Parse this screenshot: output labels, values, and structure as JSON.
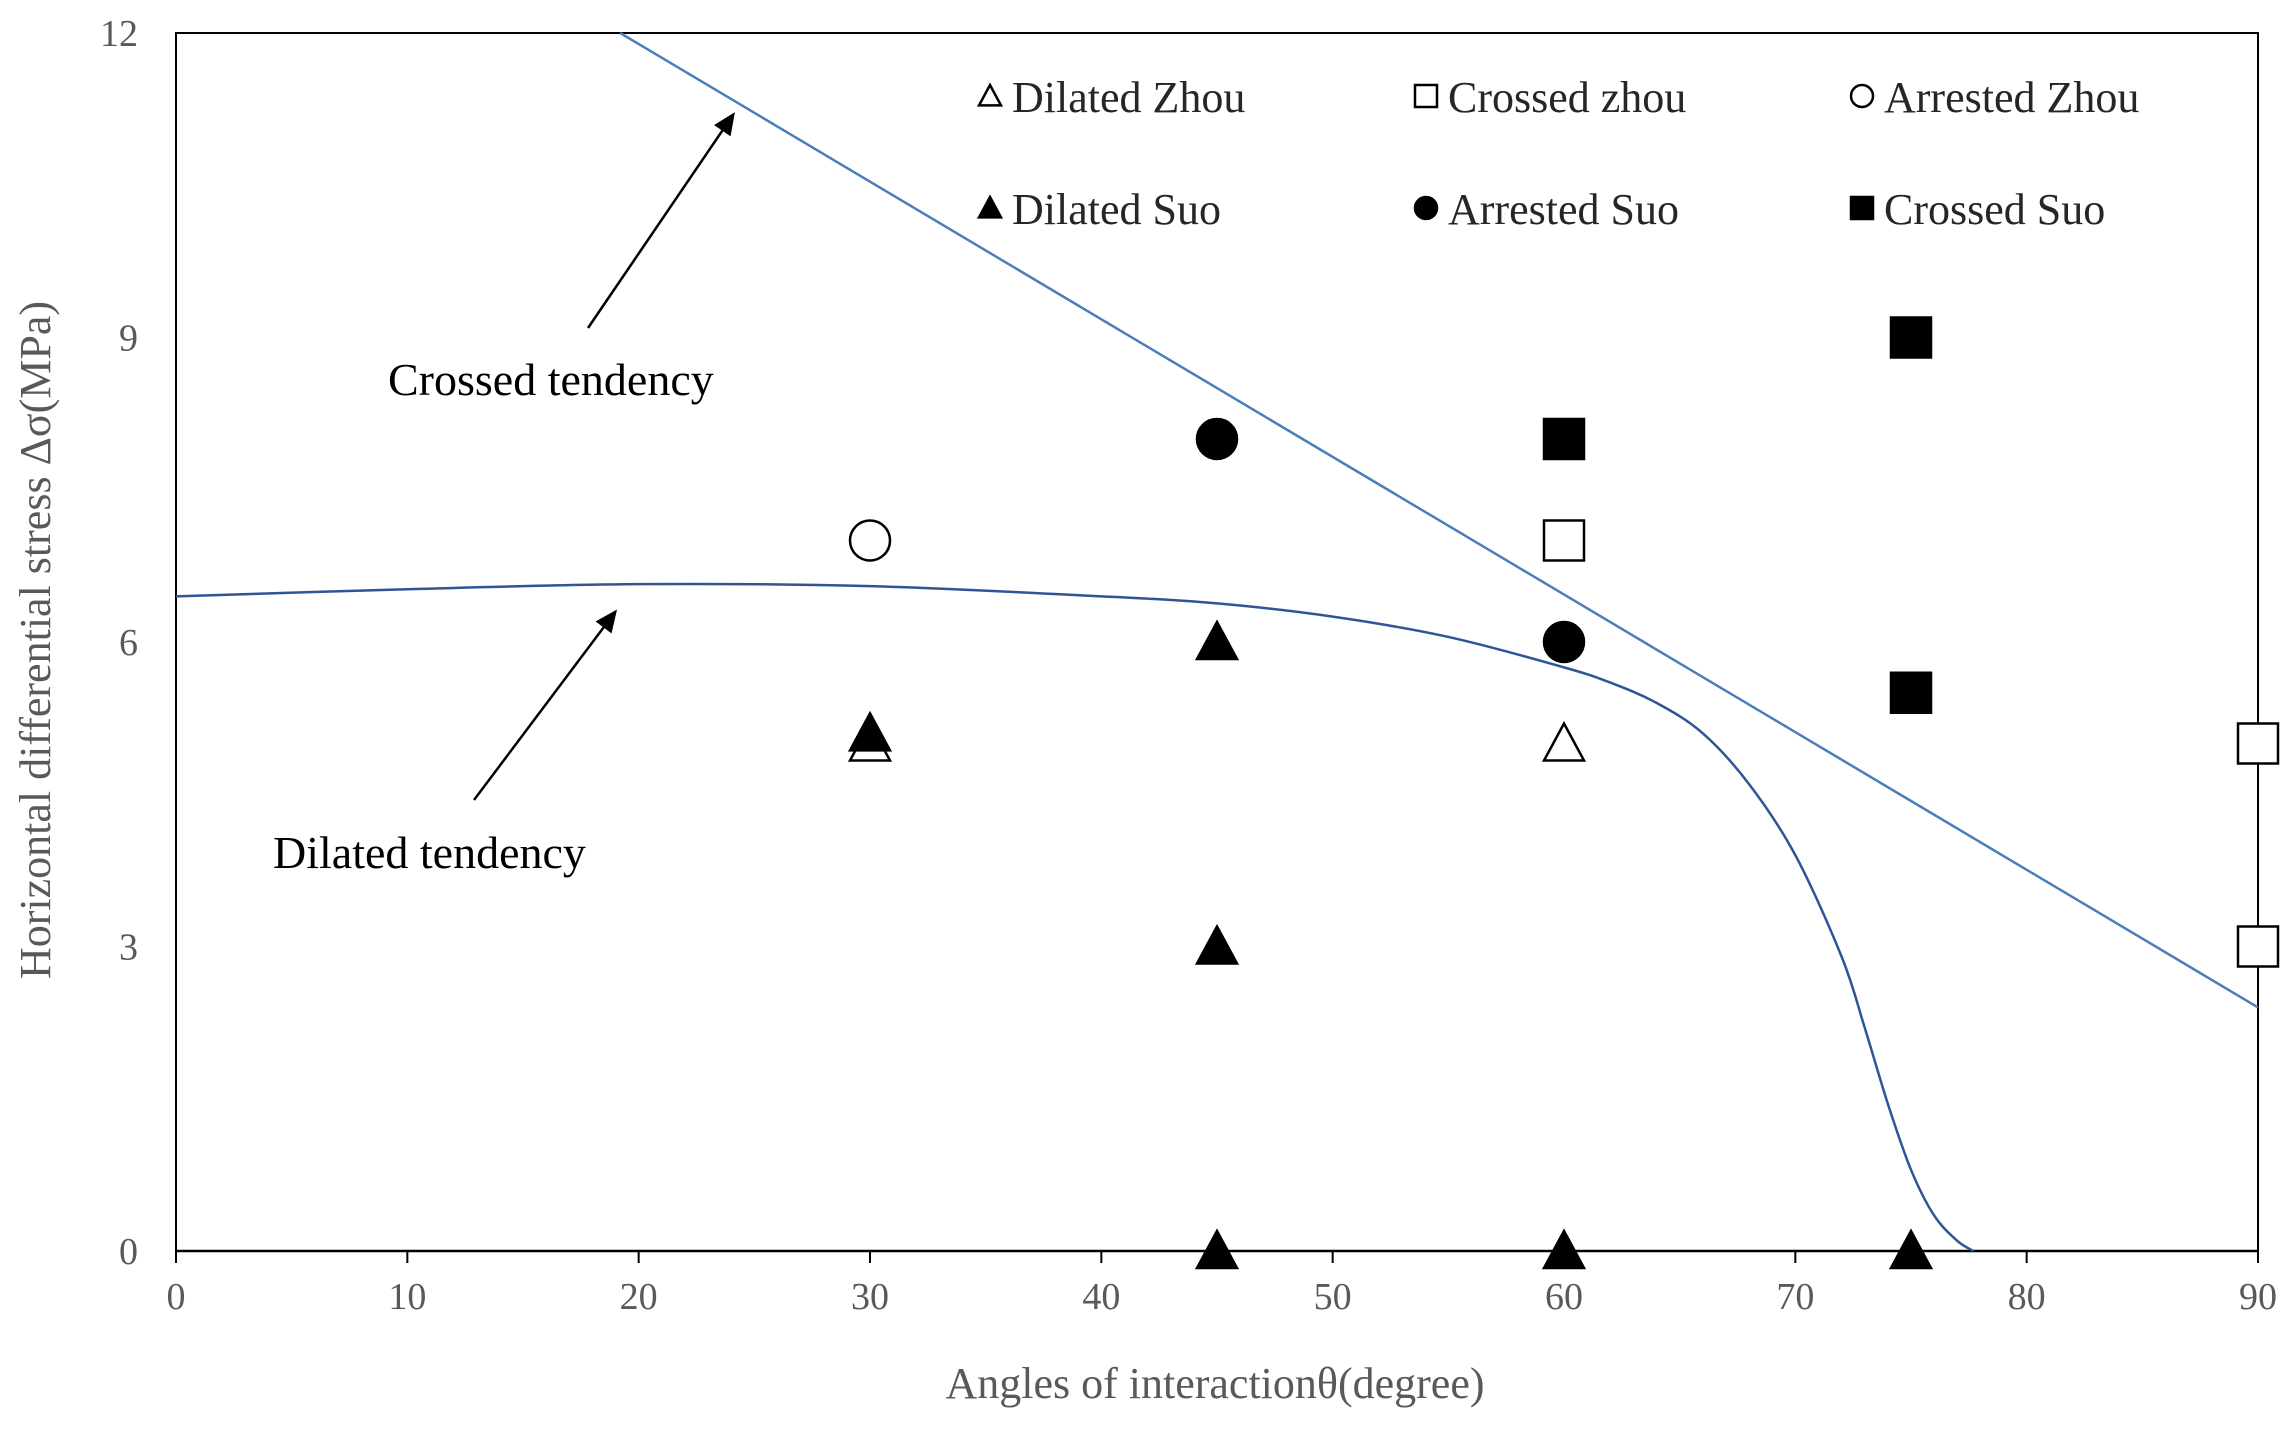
{
  "chart_data": {
    "type": "scatter",
    "title": "",
    "xlabel": "Angles of interactionθ(degree)",
    "ylabel": "Horizontal differential stress Δσ(MPa)",
    "xlim": [
      0,
      90
    ],
    "ylim": [
      0,
      12
    ],
    "xticks": [
      0,
      10,
      20,
      30,
      40,
      50,
      60,
      70,
      80,
      90
    ],
    "yticks": [
      0,
      3,
      6,
      9,
      12
    ],
    "grid": false,
    "legend_position": "top",
    "series": [
      {
        "name": "Dilated Zhou",
        "marker": "triangle",
        "filled": false,
        "points": [
          [
            30,
            5
          ],
          [
            60,
            5
          ]
        ]
      },
      {
        "name": "Crossed zhou",
        "marker": "square",
        "filled": false,
        "points": [
          [
            60,
            7
          ],
          [
            90,
            5
          ],
          [
            90,
            3
          ]
        ]
      },
      {
        "name": "Arrested Zhou",
        "marker": "circle",
        "filled": false,
        "points": [
          [
            30,
            7
          ]
        ]
      },
      {
        "name": "Dilated Suo",
        "marker": "triangle",
        "filled": true,
        "points": [
          [
            30,
            5.1
          ],
          [
            45,
            6
          ],
          [
            45,
            3
          ],
          [
            45,
            0
          ],
          [
            60,
            0
          ],
          [
            75,
            0
          ]
        ]
      },
      {
        "name": "Arrested Suo",
        "marker": "circle",
        "filled": true,
        "points": [
          [
            45,
            8
          ],
          [
            60,
            6
          ]
        ]
      },
      {
        "name": "Crossed Suo",
        "marker": "square",
        "filled": true,
        "points": [
          [
            75,
            9
          ],
          [
            60,
            8
          ],
          [
            75,
            5.5
          ]
        ]
      }
    ],
    "lines": [
      {
        "name": "Crossed tendency",
        "color": "#4a7ebb",
        "points": [
          [
            19.2,
            12
          ],
          [
            90,
            2.4
          ]
        ]
      },
      {
        "name": "Dilated tendency",
        "color": "#2f5597",
        "points": [
          [
            0,
            6.45
          ],
          [
            10,
            6.52
          ],
          [
            20,
            6.57
          ],
          [
            30,
            6.55
          ],
          [
            40,
            6.45
          ],
          [
            45,
            6.38
          ],
          [
            50,
            6.25
          ],
          [
            55,
            6.05
          ],
          [
            60,
            5.75
          ],
          [
            62,
            5.6
          ],
          [
            64,
            5.4
          ],
          [
            66,
            5.1
          ],
          [
            68,
            4.6
          ],
          [
            70,
            3.9
          ],
          [
            72,
            2.9
          ],
          [
            73,
            2.2
          ],
          [
            74,
            1.45
          ],
          [
            75,
            0.8
          ],
          [
            76,
            0.35
          ],
          [
            77,
            0.1
          ],
          [
            77.7,
            0
          ]
        ]
      }
    ],
    "annotations": [
      {
        "text": "Crossed tendency",
        "arrow_to": [
          24.1,
          11.2
        ]
      },
      {
        "text": "Dilated tendency",
        "arrow_to": [
          19,
          6.3
        ]
      }
    ]
  }
}
